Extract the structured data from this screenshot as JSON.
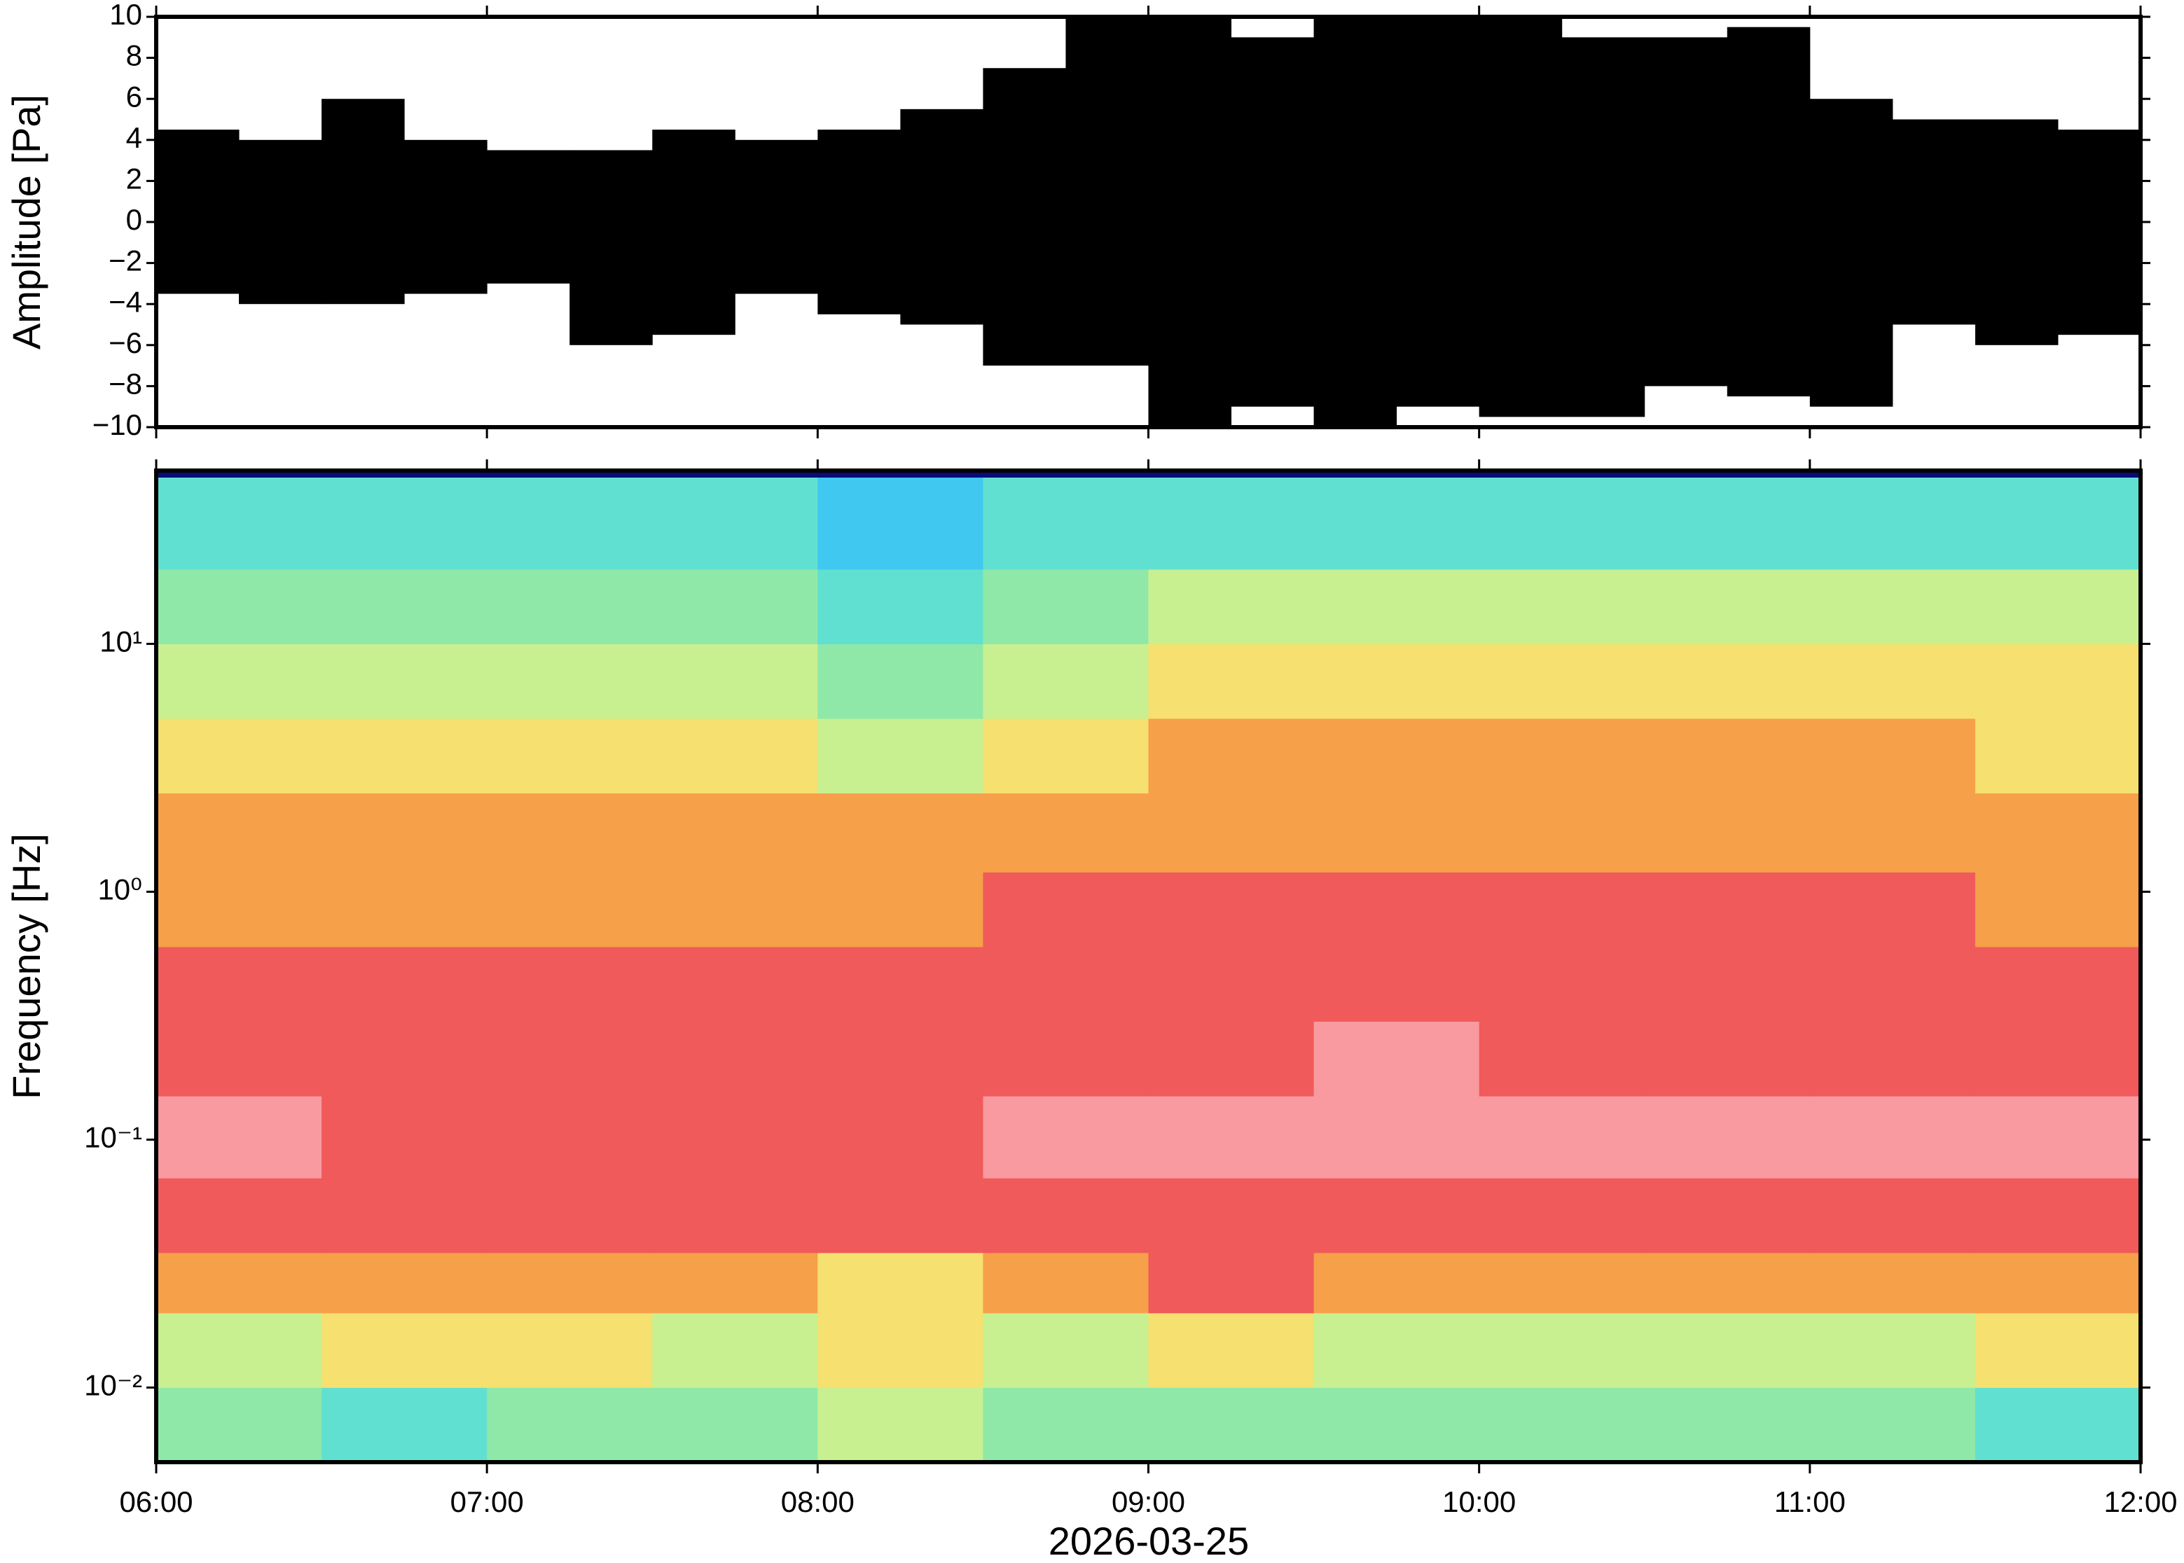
{
  "chart_data": [
    {
      "type": "envelope",
      "ylabel": "Amplitude [Pa]",
      "color": "#000000",
      "xlim": [
        6,
        12
      ],
      "xticks": [
        6,
        7,
        8,
        9,
        10,
        11,
        12
      ],
      "ylim": [
        -10,
        10
      ],
      "yticks": [
        {
          "value": -10,
          "label": "−10"
        },
        {
          "value": -8,
          "label": "−8"
        },
        {
          "value": -6,
          "label": "−6"
        },
        {
          "value": -4,
          "label": "−4"
        },
        {
          "value": -2,
          "label": "−2"
        },
        0,
        2,
        4,
        6,
        8,
        10
      ],
      "bins": [
        6,
        6.25,
        6.5,
        6.75,
        7,
        7.25,
        7.5,
        7.75,
        8,
        8.25,
        8.5,
        8.75,
        9,
        9.25,
        9.5,
        9.75,
        10,
        10.25,
        10.5,
        10.75,
        11,
        11.25,
        11.5,
        11.75,
        12
      ],
      "upper": [
        4.5,
        4,
        6,
        4,
        3.5,
        3.5,
        4.5,
        4,
        4.5,
        5.5,
        7.5,
        10,
        10,
        9,
        10,
        10,
        10,
        9,
        9,
        9.5,
        6,
        5,
        5,
        4.5
      ],
      "lower": [
        -3.5,
        -4,
        -4,
        -3.5,
        -3,
        -6,
        -5.5,
        -3.5,
        -4.5,
        -5,
        -7,
        -7,
        -10,
        -9,
        -10,
        -9,
        -9.5,
        -9.5,
        -8,
        -8.5,
        -9,
        -5,
        -6,
        -5.5
      ]
    },
    {
      "type": "heatmap",
      "ylabel": "Frequency [Hz]",
      "xlabel": "2026-03-25",
      "log_y": true,
      "xlim": [
        6,
        12
      ],
      "xticks": [
        {
          "value": 6,
          "label": "06:00"
        },
        {
          "value": 7,
          "label": "07:00"
        },
        {
          "value": 8,
          "label": "08:00"
        },
        {
          "value": 9,
          "label": "09:00"
        },
        {
          "value": 10,
          "label": "10:00"
        },
        {
          "value": 11,
          "label": "11:00"
        },
        {
          "value": 12,
          "label": "12:00"
        }
      ],
      "ylim": [
        0.005,
        50
      ],
      "yticks": [
        {
          "value": 0.01,
          "label": "10⁻²"
        },
        {
          "value": 0.1,
          "label": "10⁻¹"
        },
        {
          "value": 1,
          "label": "10⁰"
        },
        {
          "value": 10,
          "label": "10¹"
        }
      ],
      "x_edges": [
        6,
        6.5,
        7,
        7.5,
        8,
        8.5,
        9,
        9.5,
        10,
        10.5,
        11,
        11.5,
        12
      ],
      "y_edges": [
        0.005,
        0.01,
        0.02,
        0.035,
        0.07,
        0.15,
        0.3,
        0.6,
        1.2,
        2.5,
        5,
        10,
        20,
        47,
        50
      ],
      "colormap": [
        "#0a0a7a",
        "#2a7fff",
        "#40c8f0",
        "#60e0d0",
        "#8fe8a8",
        "#c8f090",
        "#f5e070",
        "#f6a04a",
        "#f05a5a",
        "#f89aa0"
      ],
      "z": [
        [
          4,
          3,
          4,
          4,
          5,
          4,
          4,
          4,
          4,
          4,
          4,
          3
        ],
        [
          5,
          6,
          6,
          5,
          6,
          5,
          6,
          5,
          5,
          5,
          5,
          6
        ],
        [
          7,
          7,
          7,
          7,
          6,
          7,
          8,
          7,
          7,
          7,
          7,
          7
        ],
        [
          8,
          8,
          8,
          8,
          8,
          8,
          8,
          8,
          8,
          8,
          8,
          8
        ],
        [
          9,
          8,
          8,
          8,
          8,
          9,
          9,
          9,
          9,
          9,
          9,
          9
        ],
        [
          8,
          8,
          8,
          8,
          8,
          8,
          8,
          9,
          8,
          8,
          8,
          8
        ],
        [
          8,
          8,
          8,
          8,
          8,
          8,
          8,
          8,
          8,
          8,
          8,
          8
        ],
        [
          7,
          7,
          7,
          7,
          7,
          8,
          8,
          8,
          8,
          8,
          8,
          7
        ],
        [
          7,
          7,
          7,
          7,
          7,
          7,
          7,
          7,
          7,
          7,
          7,
          7
        ],
        [
          6,
          6,
          6,
          6,
          5,
          6,
          7,
          7,
          7,
          7,
          7,
          6
        ],
        [
          5,
          5,
          5,
          5,
          4,
          5,
          6,
          6,
          6,
          6,
          6,
          6
        ],
        [
          4,
          4,
          4,
          4,
          3,
          4,
          5,
          5,
          5,
          5,
          5,
          5
        ],
        [
          3,
          3,
          3,
          3,
          2,
          3,
          3,
          3,
          3,
          3,
          3,
          3
        ],
        [
          0,
          0,
          0,
          0,
          0,
          0,
          0,
          0,
          0,
          0,
          0,
          0
        ]
      ]
    }
  ]
}
